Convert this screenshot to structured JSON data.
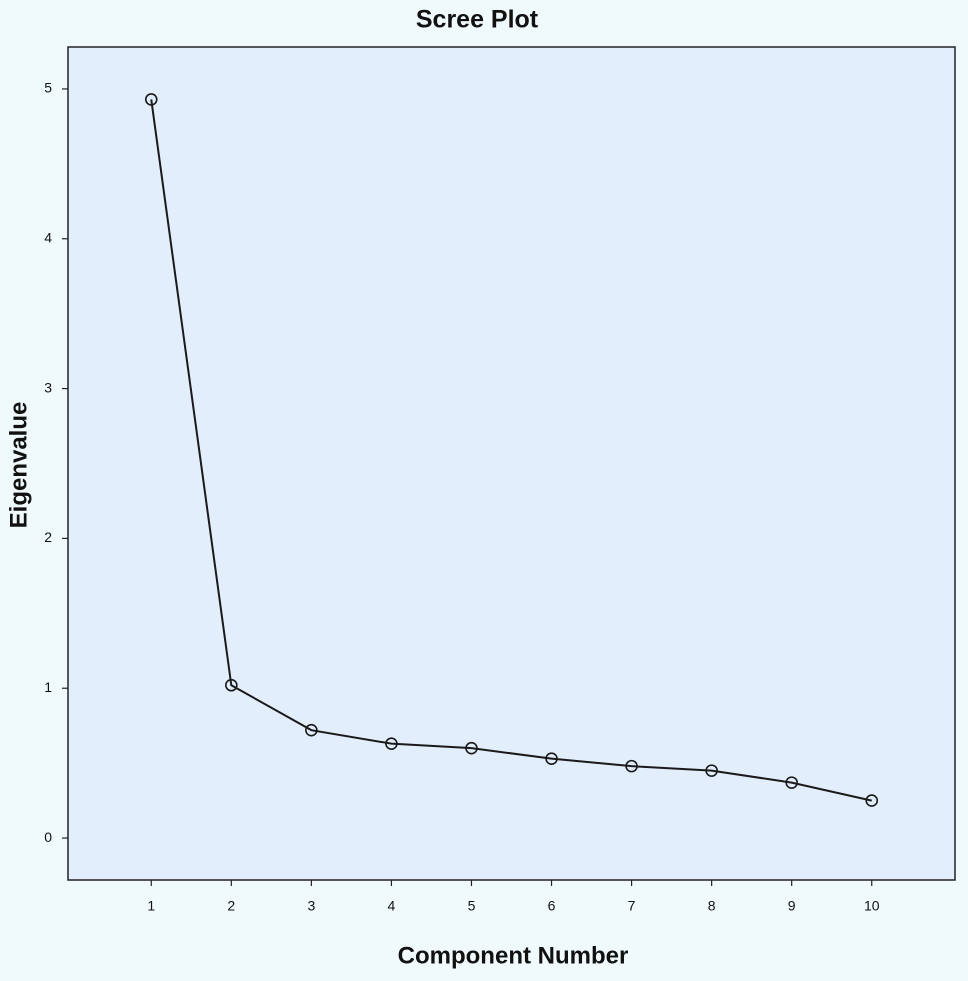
{
  "chart_data": {
    "type": "line",
    "title": "Scree Plot",
    "x_label": "Component Number",
    "y_label": "Eigenvalue",
    "x": [
      1,
      2,
      3,
      4,
      5,
      6,
      7,
      8,
      9,
      10
    ],
    "values": [
      4.93,
      1.02,
      0.72,
      0.63,
      0.6,
      0.53,
      0.48,
      0.45,
      0.37,
      0.25
    ],
    "color": "#1a1a1a",
    "marker": "circle",
    "xlim": [
      -0.04,
      11.04
    ],
    "xticks": [
      1,
      2,
      3,
      4,
      5,
      6,
      7,
      8,
      9,
      10
    ],
    "ylim": [
      -0.28,
      5.28
    ],
    "yticks": [
      0,
      1,
      2,
      3,
      4,
      5
    ],
    "grid": false
  }
}
